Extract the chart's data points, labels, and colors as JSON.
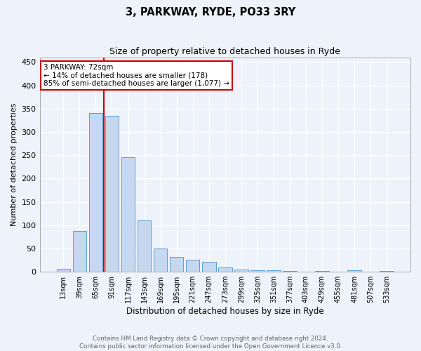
{
  "title": "3, PARKWAY, RYDE, PO33 3RY",
  "subtitle": "Size of property relative to detached houses in Ryde",
  "xlabel": "Distribution of detached houses by size in Ryde",
  "ylabel": "Number of detached properties",
  "bar_values": [
    7,
    88,
    341,
    334,
    246,
    110,
    50,
    32,
    26,
    22,
    10,
    5,
    3,
    3,
    2,
    0,
    2,
    0,
    3,
    0,
    2
  ],
  "bar_labels": [
    "13sqm",
    "39sqm",
    "65sqm",
    "91sqm",
    "117sqm",
    "143sqm",
    "169sqm",
    "195sqm",
    "221sqm",
    "247sqm",
    "273sqm",
    "299sqm",
    "325sqm",
    "351sqm",
    "377sqm",
    "403sqm",
    "429sqm",
    "455sqm",
    "481sqm",
    "507sqm",
    "533sqm"
  ],
  "bar_color": "#c5d8f0",
  "bar_edge_color": "#5a9fd4",
  "background_color": "#eef2fb",
  "grid_color": "#ffffff",
  "annotation_line1": "3 PARKWAY: 72sqm",
  "annotation_line2": "← 14% of detached houses are smaller (178)",
  "annotation_line3": "85% of semi-detached houses are larger (1,077) →",
  "annotation_box_color": "#cc0000",
  "vline_x": 2.5,
  "ylim": [
    0,
    460
  ],
  "yticks": [
    0,
    50,
    100,
    150,
    200,
    250,
    300,
    350,
    400,
    450
  ],
  "footer_text": "Contains HM Land Registry data © Crown copyright and database right 2024.\nContains public sector information licensed under the Open Government Licence v3.0.",
  "figsize": [
    6.0,
    5.0
  ],
  "dpi": 100
}
